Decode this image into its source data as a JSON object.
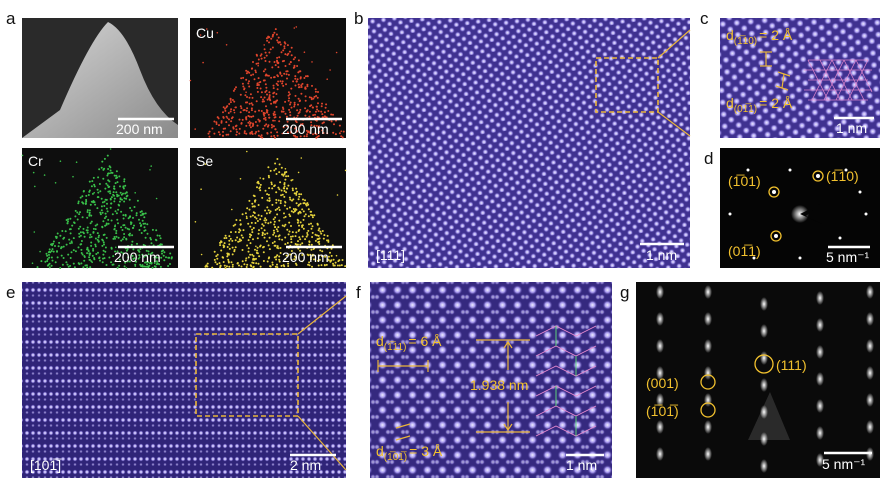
{
  "panels": [
    {
      "letter": "a",
      "images": [
        {
          "scale_bar": "200 nm"
        },
        {
          "element": "Cu",
          "scale_bar": "200 nm"
        },
        {
          "element": "Cr",
          "scale_bar": "200 nm"
        },
        {
          "element": "Se",
          "scale_bar": "200 nm"
        }
      ]
    },
    {
      "letter": "b",
      "zone_axis": "[111]",
      "scale_bar": "1 nm"
    },
    {
      "letter": "c",
      "annotations": [
        {
          "symbol": "d",
          "index": "(1̅10)",
          "value": "= 2 Å"
        },
        {
          "symbol": "d",
          "index": "(01̅1)",
          "value": "= 2 Å"
        }
      ],
      "scale_bar": "1 nm"
    },
    {
      "letter": "d",
      "spots": [
        "(1̅01)",
        "(1̅10)",
        "(01̅1)"
      ],
      "scale_bar": "5 nm⁻¹"
    },
    {
      "letter": "e",
      "zone_axis": "[101̅]",
      "scale_bar": "2 nm"
    },
    {
      "letter": "f",
      "annotations": [
        {
          "symbol": "d",
          "index": "(1̅11)",
          "value": "= 6 Å"
        },
        {
          "symbol": "d",
          "index": "(1̅01̅)",
          "value": "= 3 Å"
        }
      ],
      "spacing": "1.938 nm",
      "scale_bar": "1 nm"
    },
    {
      "letter": "g",
      "spots": [
        "(001)",
        "(1̅01̅)",
        "(111)"
      ],
      "scale_bar": "5 nm⁻¹"
    }
  ]
}
